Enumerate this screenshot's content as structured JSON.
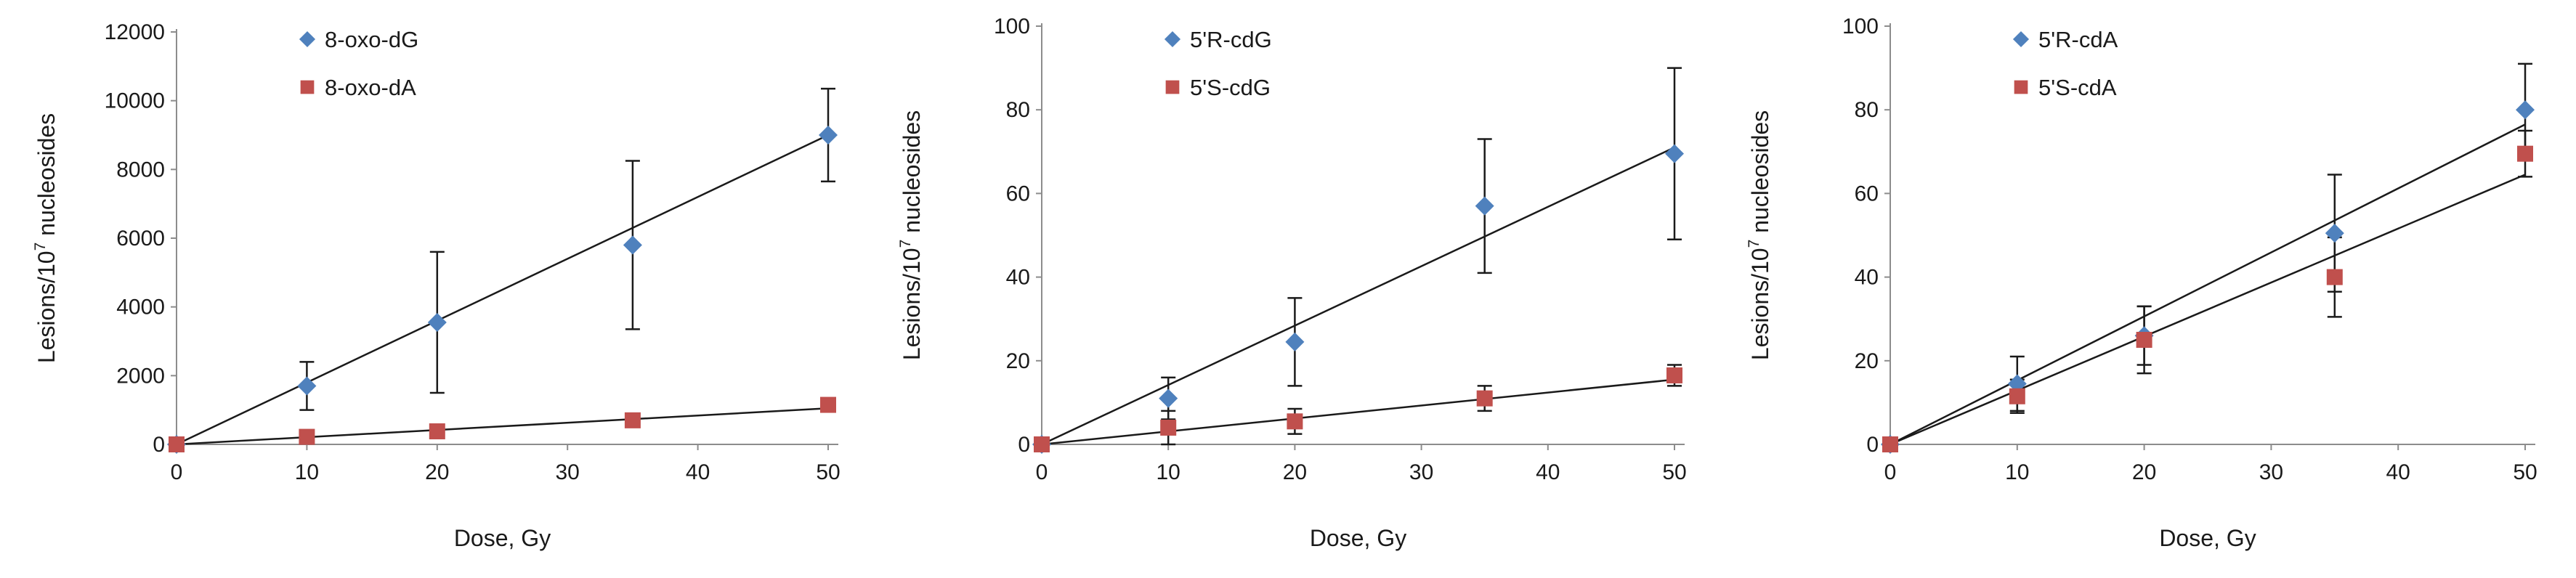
{
  "colors": {
    "series_a": "#4f81bd",
    "series_b": "#c0504d",
    "axis": "#8c8c8c",
    "line": "#1a1a1a",
    "text": "#1a1a1a"
  },
  "chart_data": [
    {
      "type": "scatter",
      "xlabel": "Dose, Gy",
      "ylabel": "Lesions/10",
      "ylabel_superscript": "7",
      "ylabel_suffix": " nucleosides",
      "xlim": [
        0,
        50
      ],
      "ylim": [
        0,
        12000
      ],
      "x_ticks": [
        "0",
        "10",
        "20",
        "30",
        "40",
        "50"
      ],
      "y_ticks": [
        "0",
        "2000",
        "4000",
        "6000",
        "8000",
        "10000",
        "12000"
      ],
      "legend_position": "top-left",
      "series": [
        {
          "name": "8-oxo-dG",
          "marker": "diamond",
          "color_key": "series_a",
          "x": [
            0,
            10,
            20,
            35,
            50
          ],
          "y": [
            0,
            1700,
            3550,
            5800,
            9000
          ],
          "err": [
            0,
            700,
            2050,
            2450,
            1350
          ],
          "fit": [
            0,
            9000
          ]
        },
        {
          "name": "8-oxo-dA",
          "marker": "square",
          "color_key": "series_b",
          "x": [
            0,
            10,
            20,
            35,
            50
          ],
          "y": [
            0,
            220,
            380,
            700,
            1150
          ],
          "err": [
            0,
            0,
            0,
            0,
            0
          ],
          "fit": [
            0,
            1050
          ]
        }
      ]
    },
    {
      "type": "scatter",
      "xlabel": "Dose, Gy",
      "ylabel": "Lesions/10",
      "ylabel_superscript": "7",
      "ylabel_suffix": " nucleosides",
      "xlim": [
        0,
        50
      ],
      "ylim": [
        0,
        100
      ],
      "x_ticks": [
        "0",
        "10",
        "20",
        "30",
        "40",
        "50"
      ],
      "y_ticks": [
        "0",
        "20",
        "40",
        "60",
        "80",
        "100"
      ],
      "legend_position": "top-left",
      "series": [
        {
          "name": "5'R-cdG",
          "marker": "diamond",
          "color_key": "series_a",
          "x": [
            0,
            10,
            20,
            35,
            50
          ],
          "y": [
            0,
            11,
            24.5,
            57,
            69.5
          ],
          "err": [
            0,
            5,
            10.5,
            16,
            20.5
          ],
          "fit": [
            0,
            71
          ]
        },
        {
          "name": "5'S-cdG",
          "marker": "square",
          "color_key": "series_b",
          "x": [
            0,
            10,
            20,
            35,
            50
          ],
          "y": [
            0,
            4,
            5.5,
            11,
            16.5
          ],
          "err": [
            0,
            4,
            3,
            3,
            2.5
          ],
          "fit": [
            0,
            15.5
          ]
        }
      ]
    },
    {
      "type": "scatter",
      "xlabel": "Dose, Gy",
      "ylabel": "Lesions/10",
      "ylabel_superscript": "7",
      "ylabel_suffix": " nucleosides",
      "xlim": [
        0,
        50
      ],
      "ylim": [
        0,
        100
      ],
      "x_ticks": [
        "0",
        "10",
        "20",
        "30",
        "40",
        "50"
      ],
      "y_ticks": [
        "0",
        "20",
        "40",
        "60",
        "80",
        "100"
      ],
      "legend_position": "top-left",
      "series": [
        {
          "name": "5'R-cdA",
          "marker": "diamond",
          "color_key": "series_a",
          "x": [
            0,
            10,
            20,
            35,
            50
          ],
          "y": [
            0,
            14.5,
            26,
            50.5,
            80
          ],
          "err": [
            0,
            6.5,
            7,
            14,
            11
          ],
          "fit": [
            0,
            76.5
          ]
        },
        {
          "name": "5'S-cdA",
          "marker": "square",
          "color_key": "series_b",
          "x": [
            0,
            10,
            20,
            35,
            50
          ],
          "y": [
            0,
            11.5,
            25,
            40,
            69.5
          ],
          "err": [
            0,
            4,
            8,
            9.5,
            5.5
          ],
          "fit": [
            0,
            64.5
          ]
        }
      ]
    }
  ]
}
